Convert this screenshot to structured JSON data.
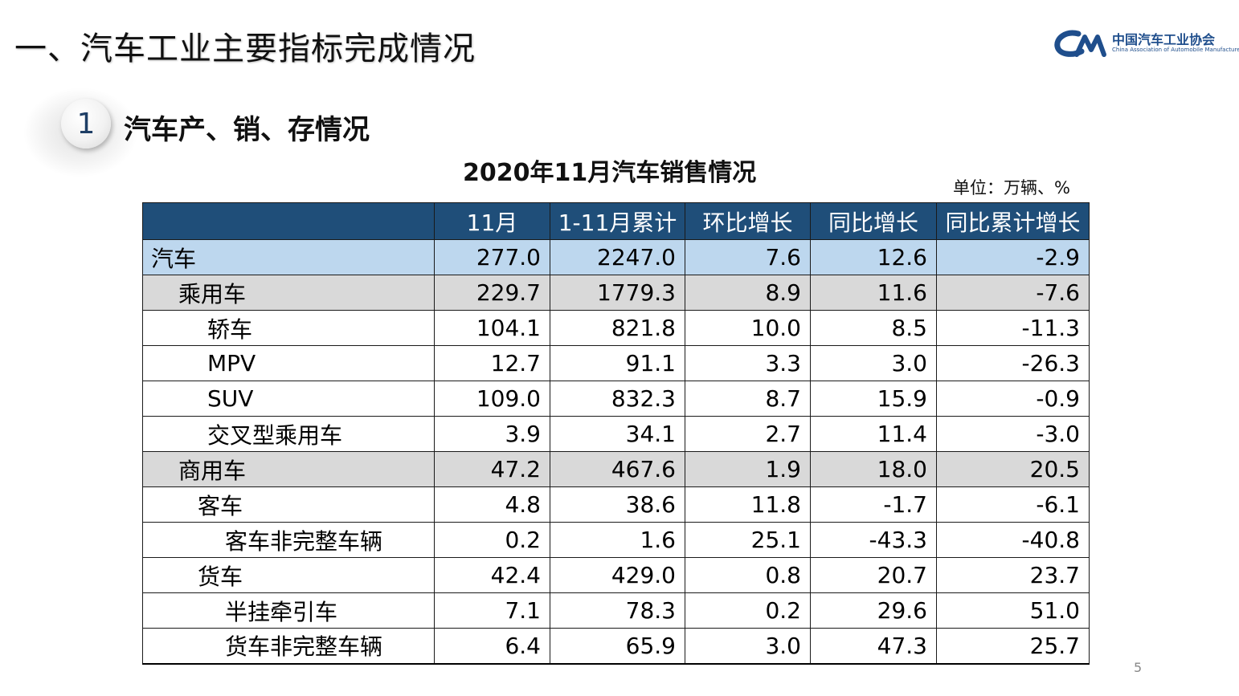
{
  "page": {
    "title": "一、汽车工业主要指标完成情况",
    "page_number": "5"
  },
  "logo": {
    "cn_name": "中国汽车工业协会",
    "en_name": "China Association of Automobile Manufacturers",
    "color": "#1f4e8c"
  },
  "section": {
    "number": "1",
    "title": "汽车产、销、存情况"
  },
  "table": {
    "title": "2020年11月汽车销售情况",
    "unit": "单位：万辆、%",
    "header_color": "#1f4e79",
    "total_row_color": "#bdd7ee",
    "sub_row_color": "#d9d9d9",
    "columns": [
      "",
      "11月",
      "1-11月累计",
      "环比增长",
      "同比增长",
      "同比累计增长"
    ],
    "rows": [
      {
        "name": "汽车",
        "level": "total",
        "values": [
          "277.0",
          "2247.0",
          "7.6",
          "12.6",
          "-2.9"
        ]
      },
      {
        "name": "乘用车",
        "level": "sub",
        "values": [
          "229.7",
          "1779.3",
          "8.9",
          "11.6",
          "-7.6"
        ]
      },
      {
        "name": "轿车",
        "level": "item",
        "values": [
          "104.1",
          "821.8",
          "10.0",
          "8.5",
          "-11.3"
        ]
      },
      {
        "name": "MPV",
        "level": "item",
        "values": [
          "12.7",
          "91.1",
          "3.3",
          "3.0",
          "-26.3"
        ]
      },
      {
        "name": "SUV",
        "level": "item",
        "values": [
          "109.0",
          "832.3",
          "8.7",
          "15.9",
          "-0.9"
        ]
      },
      {
        "name": "交叉型乘用车",
        "level": "item",
        "values": [
          "3.9",
          "34.1",
          "2.7",
          "11.4",
          "-3.0"
        ]
      },
      {
        "name": "商用车",
        "level": "sub",
        "values": [
          "47.2",
          "467.6",
          "1.9",
          "18.0",
          "20.5"
        ]
      },
      {
        "name": "客车",
        "level": "item2",
        "values": [
          "4.8",
          "38.6",
          "11.8",
          "-1.7",
          "-6.1"
        ]
      },
      {
        "name": "客车非完整车辆",
        "level": "item3",
        "values": [
          "0.2",
          "1.6",
          "25.1",
          "-43.3",
          "-40.8"
        ]
      },
      {
        "name": "货车",
        "level": "item2",
        "values": [
          "42.4",
          "429.0",
          "0.8",
          "20.7",
          "23.7"
        ]
      },
      {
        "name": "半挂牵引车",
        "level": "item3",
        "values": [
          "7.1",
          "78.3",
          "0.2",
          "29.6",
          "51.0"
        ]
      },
      {
        "name": "货车非完整车辆",
        "level": "item3",
        "values": [
          "6.4",
          "65.9",
          "3.0",
          "47.3",
          "25.7"
        ]
      }
    ]
  }
}
